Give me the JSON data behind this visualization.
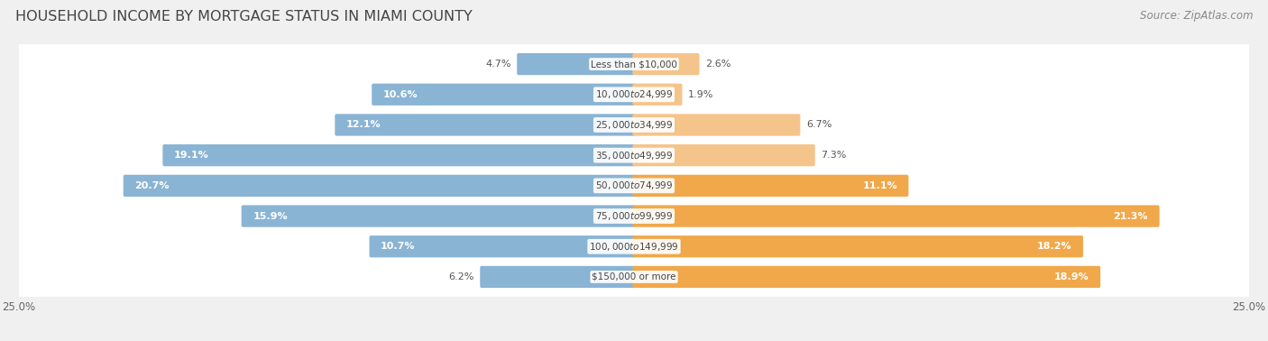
{
  "title": "HOUSEHOLD INCOME BY MORTGAGE STATUS IN MIAMI COUNTY",
  "source": "Source: ZipAtlas.com",
  "categories": [
    "Less than $10,000",
    "$10,000 to $24,999",
    "$25,000 to $34,999",
    "$35,000 to $49,999",
    "$50,000 to $74,999",
    "$75,000 to $99,999",
    "$100,000 to $149,999",
    "$150,000 or more"
  ],
  "without_mortgage": [
    4.7,
    10.6,
    12.1,
    19.1,
    20.7,
    15.9,
    10.7,
    6.2
  ],
  "with_mortgage": [
    2.6,
    1.9,
    6.7,
    7.3,
    11.1,
    21.3,
    18.2,
    18.9
  ],
  "color_without": "#8ab4d4",
  "color_with": "#f5c48a",
  "color_with_large": "#f0a84a",
  "axis_limit": 25.0,
  "bg_color": "#f0f0f0",
  "row_bg_color": "#ffffff",
  "title_fontsize": 11.5,
  "source_fontsize": 8.5,
  "label_fontsize": 8,
  "category_fontsize": 7.5,
  "axis_label_fontsize": 8.5,
  "inside_label_threshold": 8.0
}
